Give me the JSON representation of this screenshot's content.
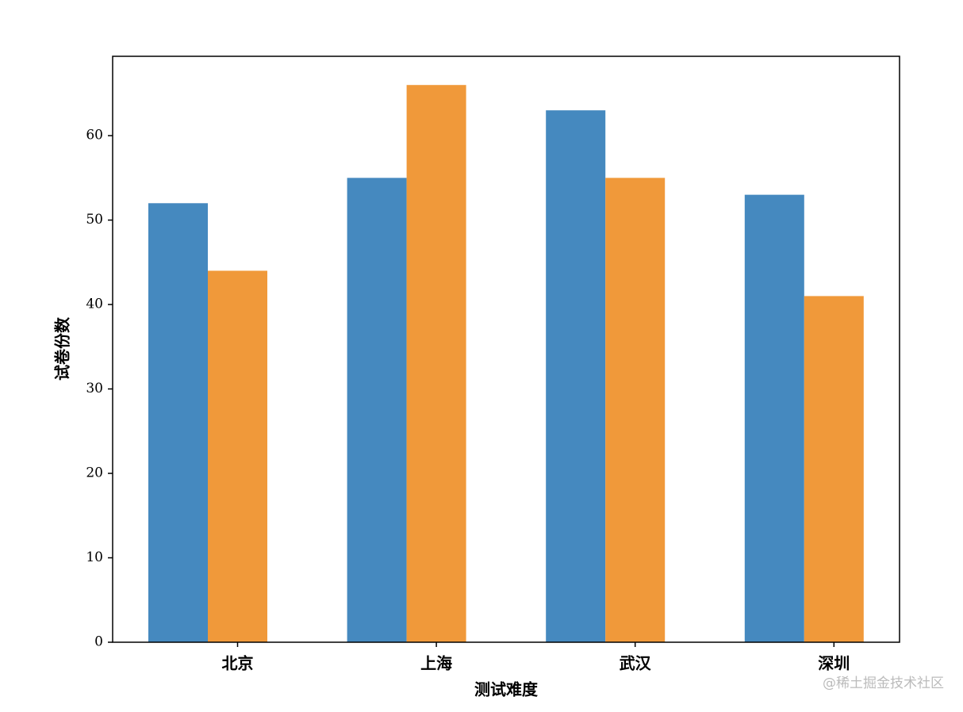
{
  "chart_data": {
    "type": "bar",
    "x_label": "测试难度",
    "y_label": "试卷份数",
    "categories": [
      "北京",
      "上海",
      "武汉",
      "深圳"
    ],
    "series": [
      {
        "color": "#4589bf",
        "values": [
          52,
          55,
          63,
          53
        ]
      },
      {
        "color": "#f0993a",
        "values": [
          44,
          66,
          55,
          41
        ]
      }
    ],
    "ylim": [
      0,
      69.4
    ],
    "yticks": [
      0,
      10,
      20,
      30,
      40,
      50,
      60
    ],
    "grid": false
  },
  "watermark": "@稀土掘金技术社区"
}
